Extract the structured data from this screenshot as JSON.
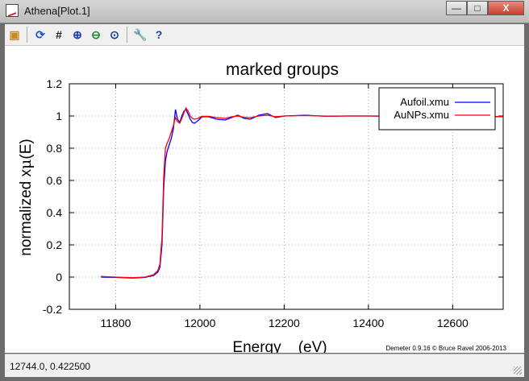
{
  "window": {
    "title": "Athena[Plot.1]",
    "controls": {
      "minimize": "—",
      "maximize": "□",
      "close": "X"
    }
  },
  "toolbar": {
    "buttons": [
      {
        "name": "save-image-button",
        "icon": "save-icon",
        "glyph": "▣",
        "color": "#c88a1d"
      },
      {
        "name": "refresh-button",
        "icon": "refresh-icon",
        "glyph": "⟳",
        "color": "#1a56c9"
      },
      {
        "name": "grid-button",
        "icon": "grid-icon",
        "glyph": "#",
        "color": "#222222"
      },
      {
        "name": "zoom-in-button",
        "icon": "zoom-in-icon",
        "glyph": "⊕",
        "color": "#1b3fa8"
      },
      {
        "name": "zoom-out-button",
        "icon": "zoom-out-icon",
        "glyph": "⊖",
        "color": "#1e8a3a"
      },
      {
        "name": "zoom-reset-button",
        "icon": "zoom-reset-icon",
        "glyph": "⊙",
        "color": "#1b3fa8"
      },
      {
        "name": "settings-button",
        "icon": "wrench-icon",
        "glyph": "🔧",
        "color": "#c9862b"
      },
      {
        "name": "help-button",
        "icon": "help-icon",
        "glyph": "?",
        "color": "#1b3fa8"
      }
    ]
  },
  "chart_data": {
    "type": "line",
    "title": "marked groups",
    "xlabel": "Energy    (eV)",
    "ylabel_prefix": "normalized x",
    "ylabel_mu": "μ",
    "ylabel_suffix": "(E)",
    "xlim": [
      11690,
      12720
    ],
    "ylim": [
      -0.2,
      1.2
    ],
    "xticks": [
      11800,
      12000,
      12200,
      12400,
      12600
    ],
    "yticks": [
      -0.2,
      0,
      0.2,
      0.4,
      0.6,
      0.8,
      1,
      1.2
    ],
    "grid": true,
    "legend_position": "top-right",
    "series": [
      {
        "name": "Aufoil.xmu",
        "color": "#0000ff",
        "x": [
          11765,
          11800,
          11840,
          11870,
          11890,
          11900,
          11905,
          11910,
          11914,
          11918,
          11922,
          11927,
          11932,
          11937,
          11942,
          11947,
          11952,
          11957,
          11962,
          11967,
          11972,
          11977,
          11982,
          11987,
          11995,
          12005,
          12020,
          12040,
          12060,
          12075,
          12090,
          12105,
          12120,
          12140,
          12160,
          12180,
          12200,
          12250,
          12300,
          12350,
          12400,
          12450,
          12500,
          12550,
          12600,
          12650,
          12720
        ],
        "y": [
          0.0,
          -0.002,
          -0.006,
          -0.002,
          0.01,
          0.03,
          0.06,
          0.2,
          0.55,
          0.72,
          0.78,
          0.82,
          0.86,
          0.92,
          1.04,
          0.98,
          0.96,
          1.0,
          1.03,
          1.04,
          1.01,
          0.98,
          0.96,
          0.955,
          0.97,
          0.995,
          0.995,
          0.98,
          0.975,
          0.99,
          1.005,
          0.985,
          0.98,
          1.005,
          1.015,
          0.99,
          1.0,
          1.005,
          0.998,
          1.0,
          1.0,
          0.999,
          0.998,
          0.997,
          0.997,
          0.996,
          0.996
        ]
      },
      {
        "name": "AuNPs.xmu",
        "color": "#ff0000",
        "x": [
          11765,
          11800,
          11840,
          11870,
          11890,
          11900,
          11905,
          11910,
          11914,
          11918,
          11922,
          11927,
          11932,
          11937,
          11942,
          11947,
          11952,
          11957,
          11962,
          11967,
          11972,
          11977,
          11982,
          11987,
          11995,
          12005,
          12020,
          12040,
          12060,
          12075,
          12090,
          12105,
          12120,
          12140,
          12160,
          12180,
          12200,
          12250,
          12300,
          12350,
          12400,
          12450,
          12500,
          12550,
          12600,
          12650,
          12720
        ],
        "y": [
          0.004,
          0.0,
          -0.004,
          0.0,
          0.015,
          0.04,
          0.08,
          0.25,
          0.62,
          0.8,
          0.83,
          0.86,
          0.9,
          0.94,
          0.99,
          0.965,
          0.955,
          0.985,
          1.02,
          1.05,
          1.03,
          1.0,
          0.985,
          0.98,
          0.985,
          0.998,
          0.998,
          0.99,
          0.985,
          0.995,
          1.0,
          0.992,
          0.99,
          1.0,
          1.005,
          0.995,
          1.0,
          1.003,
          0.999,
          1.0,
          1.0,
          0.999,
          0.999,
          0.998,
          0.998,
          0.997,
          0.997
        ]
      }
    ],
    "credit": "Demeter 0.9.16 © Bruce Ravel 2006-2013"
  },
  "status": {
    "coords": "12744.0,  0.422500"
  }
}
